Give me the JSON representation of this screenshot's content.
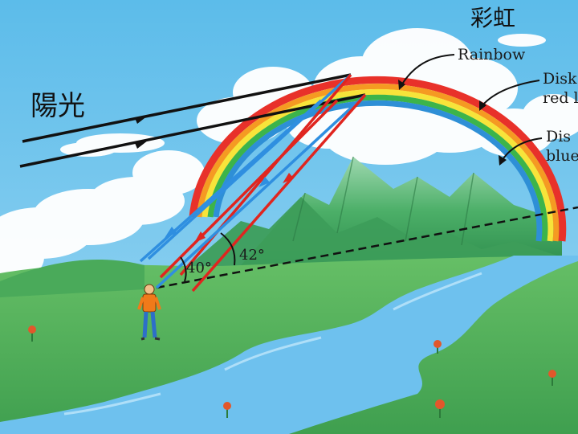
{
  "title_cjk": "彩虹",
  "sunlight_cjk": "陽光",
  "labels": {
    "rainbow": "Rainbow",
    "disk_red_line1": "Disk",
    "disk_red_line2": "red l",
    "disk_blue_line1": "Dis",
    "disk_blue_line2": "blue"
  },
  "angles": {
    "blue_angle": "40°",
    "red_angle": "42°"
  },
  "colors": {
    "sky": "#6cc3ec",
    "rainbow_red": "#e8312a",
    "rainbow_orange": "#f59a22",
    "rainbow_yellow": "#f7e43a",
    "rainbow_green": "#3cb44a",
    "rainbow_blue": "#2e8fd6",
    "ray_red": "#e0251f",
    "ray_blue": "#2f8fe0",
    "river": "#5fb8e8",
    "grass": "#5fb861",
    "mountain": "#3fa35f"
  }
}
